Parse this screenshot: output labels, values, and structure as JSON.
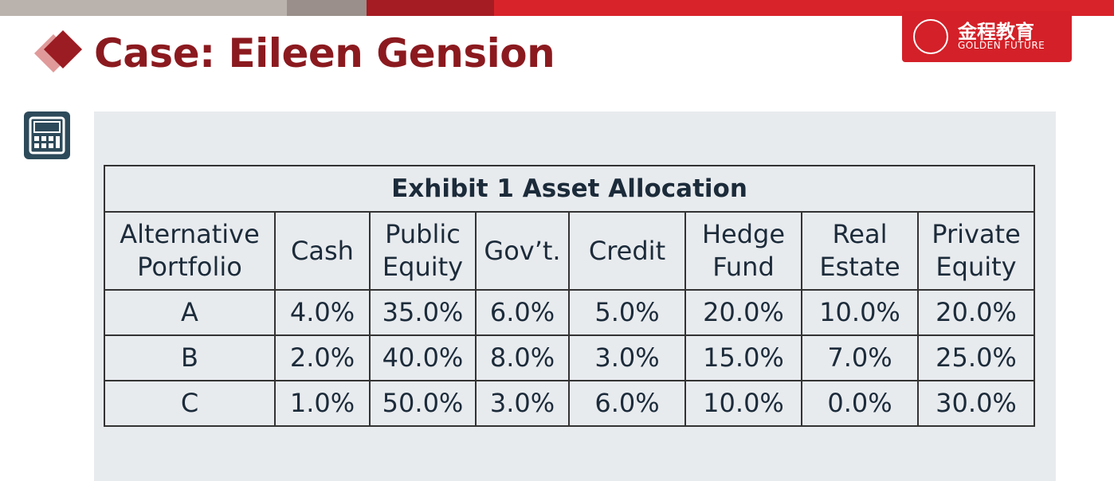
{
  "header": {
    "title": "Case: Eileen Gension",
    "logo_cn": "金程教育",
    "logo_en": "GOLDEN FUTURE"
  },
  "table": {
    "title": "Exhibit 1 Asset Allocation",
    "columns": [
      "Alternative Portfolio",
      "Cash",
      "Public Equity",
      "Gov’t.",
      "Credit",
      "Hedge Fund",
      "Real Estate",
      "Private Equity"
    ],
    "rows": [
      [
        "A",
        "4.0%",
        "35.0%",
        "6.0%",
        "5.0%",
        "20.0%",
        "10.0%",
        "20.0%"
      ],
      [
        "B",
        "2.0%",
        "40.0%",
        "8.0%",
        "3.0%",
        "15.0%",
        "7.0%",
        "25.0%"
      ],
      [
        "C",
        "1.0%",
        "50.0%",
        "3.0%",
        "6.0%",
        "10.0%",
        "0.0%",
        "30.0%"
      ]
    ]
  }
}
